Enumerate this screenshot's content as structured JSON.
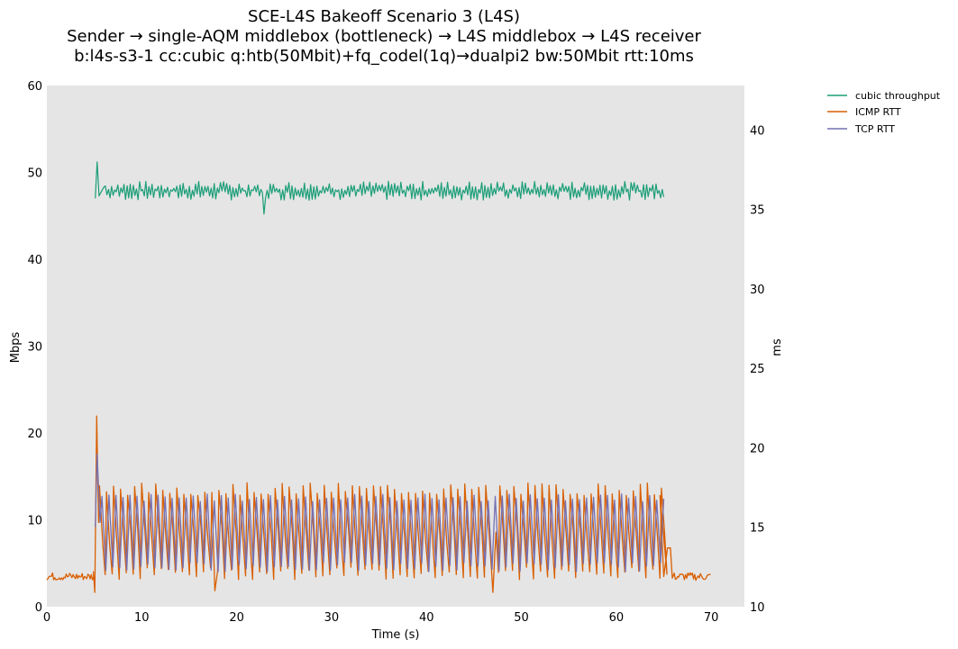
{
  "chart_data": {
    "type": "line",
    "title_lines": [
      "SCE-L4S Bakeoff Scenario 3 (L4S)",
      "Sender → single-AQM middlebox (bottleneck) → L4S middlebox → L4S receiver",
      "b:l4s-s3-1 cc:cubic q:htb(50Mbit)+fq_codel(1q)→dualpi2 bw:50Mbit rtt:10ms"
    ],
    "xlabel": "Time (s)",
    "ylabel_left": "Mbps",
    "ylabel_right": "ms",
    "xlim": [
      0,
      73.5
    ],
    "ylim_left": [
      0,
      60
    ],
    "ylim_right": [
      10,
      42.8
    ],
    "x_ticks": [
      0,
      10,
      20,
      30,
      40,
      50,
      60,
      70
    ],
    "y_ticks_left": [
      0,
      10,
      20,
      30,
      40,
      50,
      60
    ],
    "y_ticks_right": [
      10,
      15,
      20,
      25,
      30,
      35,
      40
    ],
    "grid": false,
    "legend_position": "outside-top-right",
    "series": [
      {
        "name": "cubic throughput",
        "axis": "left",
        "color": "#1b9e77",
        "start": 5.1,
        "end": 65.0,
        "points": [
          [
            5.1,
            47.0
          ],
          [
            5.3,
            51.2
          ],
          [
            5.5,
            47.3
          ],
          [
            6.0,
            48.3
          ],
          [
            10.0,
            47.6
          ],
          [
            15.0,
            47.7
          ],
          [
            22.7,
            46.8
          ],
          [
            22.9,
            45.2
          ],
          [
            23.1,
            47.6
          ],
          [
            30.0,
            47.8
          ],
          [
            40.0,
            47.7
          ],
          [
            50.0,
            47.8
          ],
          [
            60.0,
            47.7
          ],
          [
            65.0,
            47.9
          ]
        ],
        "typical_range": [
          46.6,
          49.2
        ]
      },
      {
        "name": "ICMP RTT",
        "axis": "right",
        "color": "#d95f02",
        "points": [
          [
            0.0,
            12.0
          ],
          [
            2.0,
            11.8
          ],
          [
            4.8,
            11.9
          ],
          [
            5.0,
            10.9
          ],
          [
            5.3,
            22.0
          ],
          [
            5.5,
            15.3
          ],
          [
            6.0,
            17.5
          ],
          [
            10.0,
            16.5
          ],
          [
            17.7,
            11.0
          ],
          [
            30.0,
            16.5
          ],
          [
            47.0,
            10.9
          ],
          [
            55.0,
            16.5
          ],
          [
            64.5,
            17.0
          ],
          [
            65.0,
            11.9
          ],
          [
            65.5,
            13.7
          ],
          [
            66.0,
            11.8
          ],
          [
            70.0,
            12.0
          ]
        ],
        "baseline_ms": 11.9,
        "oscillation_range": [
          11.5,
          17.5
        ],
        "oscillation_start": 5.3,
        "oscillation_end": 65.0
      },
      {
        "name": "TCP RTT",
        "axis": "right",
        "color": "#7570b3",
        "start": 5.1,
        "end": 65.0,
        "points": [
          [
            5.1,
            15.0
          ],
          [
            5.3,
            19.6
          ],
          [
            5.6,
            15.3
          ],
          [
            10.0,
            15.0
          ],
          [
            20.0,
            15.0
          ],
          [
            30.0,
            15.0
          ],
          [
            40.0,
            15.0
          ],
          [
            50.0,
            15.0
          ],
          [
            60.0,
            15.0
          ],
          [
            65.0,
            15.0
          ]
        ],
        "oscillation_range": [
          12.0,
          17.0
        ]
      }
    ]
  }
}
